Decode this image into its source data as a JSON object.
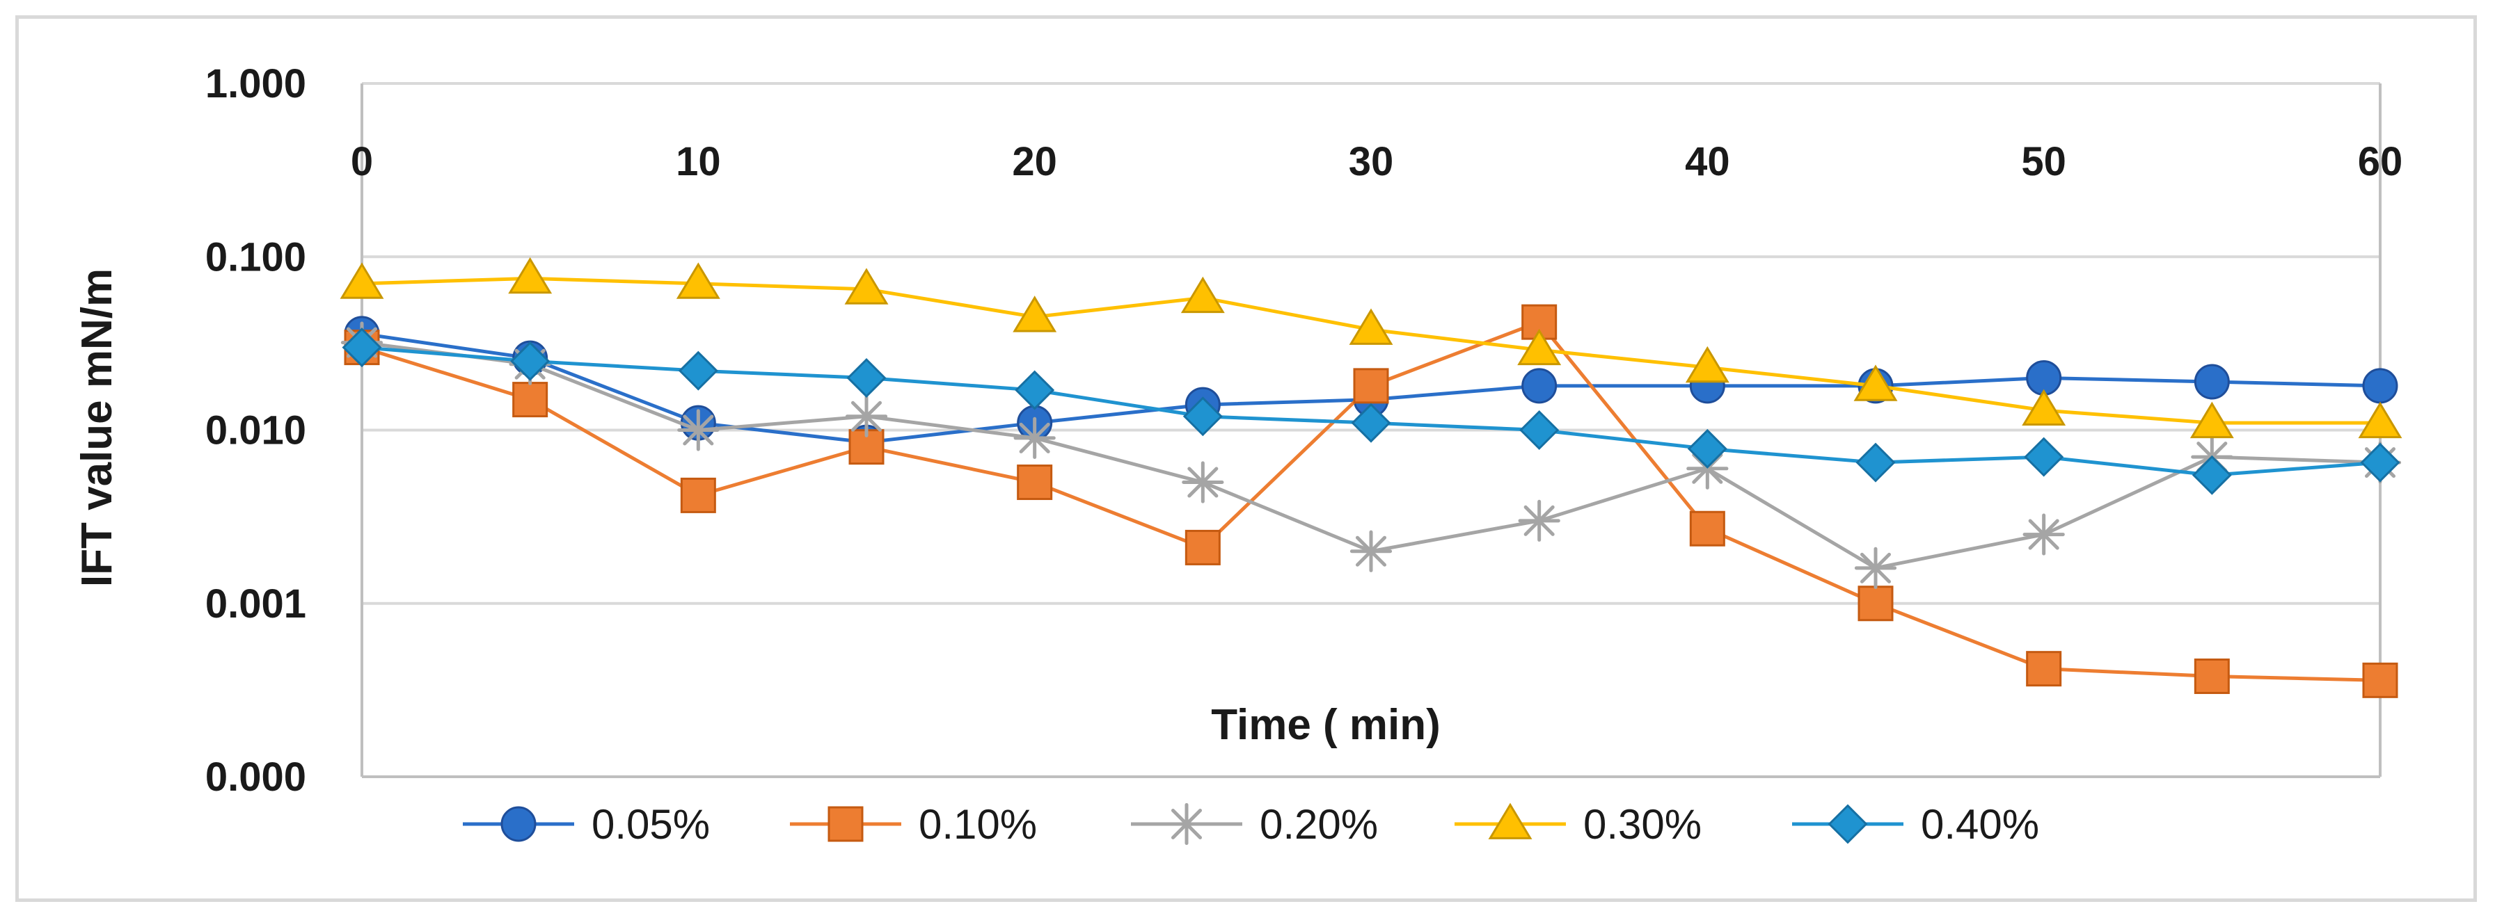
{
  "chart_data": {
    "type": "line",
    "title": "",
    "xlabel": "Time ( min)",
    "ylabel": "IFT value mN/m",
    "y_scale": "log",
    "xlim": [
      0,
      60
    ],
    "ylim": [
      0.0001,
      1
    ],
    "x_ticks": [
      0,
      10,
      20,
      30,
      40,
      50,
      60
    ],
    "x_tick_labels": [
      "0",
      "10",
      "20",
      "30",
      "40",
      "50",
      "60"
    ],
    "y_ticks": [
      1,
      0.1,
      0.01,
      0.001,
      0.0001
    ],
    "y_tick_labels": [
      "1.000",
      "0.100",
      "0.010",
      "0.001",
      "0.000"
    ],
    "x": [
      0,
      5,
      10,
      15,
      20,
      25,
      30,
      35,
      40,
      45,
      50,
      55,
      60
    ],
    "grid": "horizontal",
    "legend_position": "bottom",
    "series": [
      {
        "name": "0.05%",
        "color": "#2a6fc9",
        "marker": "circle",
        "values": [
          0.036,
          0.026,
          0.011,
          0.0085,
          0.011,
          0.014,
          0.015,
          0.018,
          0.018,
          0.018,
          0.02,
          0.019,
          0.018
        ]
      },
      {
        "name": "0.10%",
        "color": "#ed7d31",
        "marker": "square",
        "values": [
          0.03,
          0.015,
          0.0042,
          0.008,
          0.005,
          0.0021,
          0.018,
          0.042,
          0.0027,
          0.001,
          0.00042,
          0.00038,
          0.00036
        ]
      },
      {
        "name": "0.20%",
        "color": "#a5a5a5",
        "marker": "star",
        "values": [
          0.032,
          0.024,
          0.01,
          0.012,
          0.009,
          0.005,
          0.002,
          0.003,
          0.006,
          0.0016,
          0.0025,
          0.007,
          0.0065
        ]
      },
      {
        "name": "0.30%",
        "color": "#ffc000",
        "marker": "triangle",
        "values": [
          0.07,
          0.075,
          0.07,
          0.065,
          0.045,
          0.058,
          0.038,
          0.029,
          0.023,
          0.018,
          0.013,
          0.011,
          0.011
        ]
      },
      {
        "name": "0.40%",
        "color": "#1f93d0",
        "marker": "diamond",
        "values": [
          0.03,
          0.025,
          0.022,
          0.02,
          0.017,
          0.012,
          0.011,
          0.01,
          0.0078,
          0.0065,
          0.007,
          0.0055,
          0.0065
        ]
      }
    ]
  }
}
